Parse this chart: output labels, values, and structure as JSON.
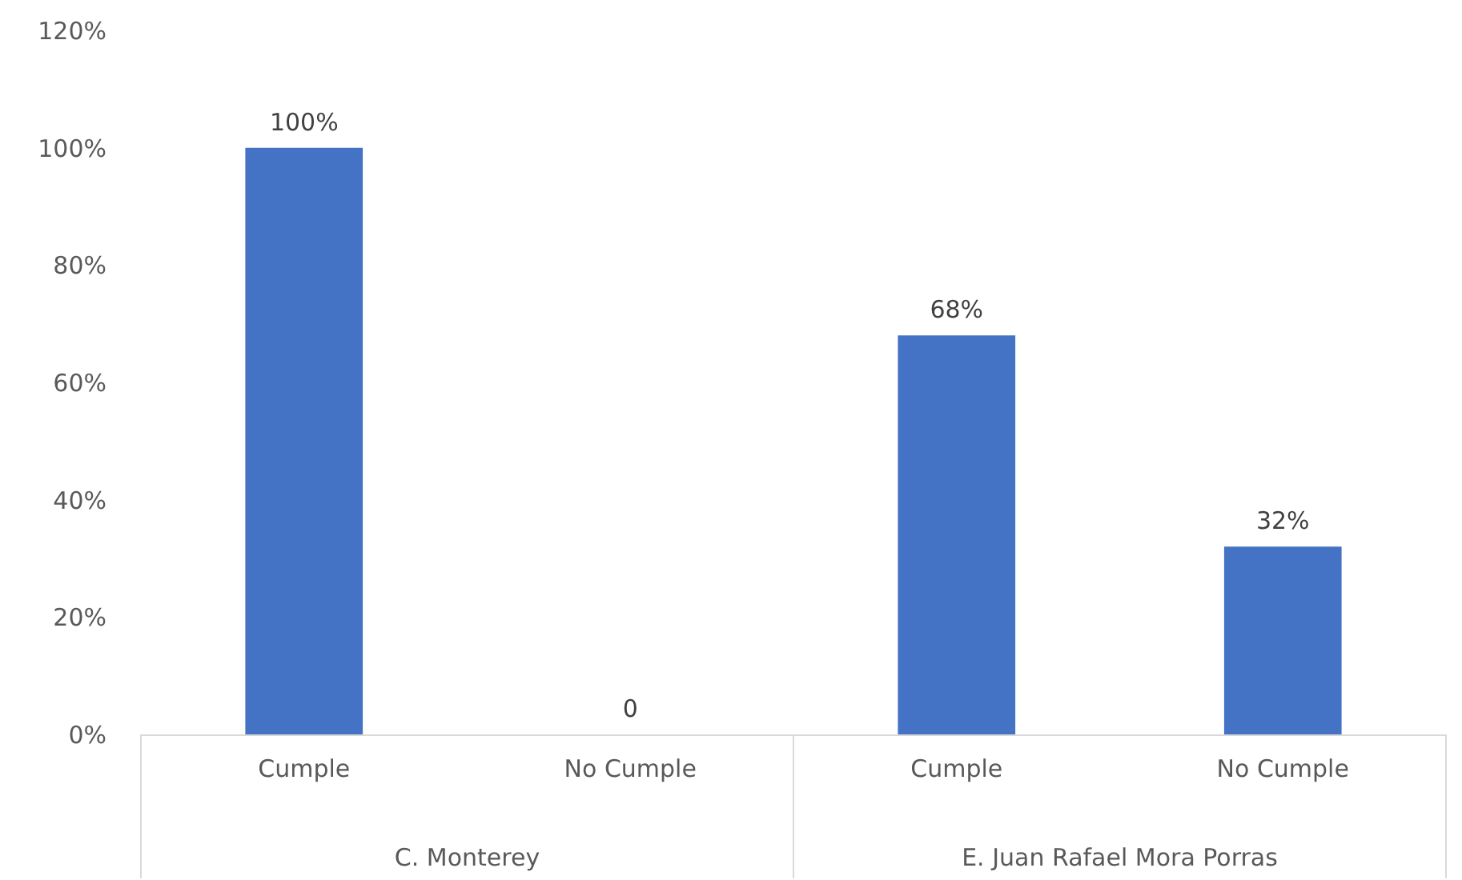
{
  "chart_data": {
    "type": "bar",
    "categories": [
      "Cumple",
      "No Cumple",
      "Cumple",
      "No Cumple"
    ],
    "values": [
      100,
      0,
      68,
      32
    ],
    "colors": [
      "#4472c4",
      "#4472c4",
      "#4472c4",
      "#4472c4"
    ],
    "value_labels": [
      "100%",
      "0",
      "68%",
      "32%"
    ],
    "ylim": [
      0,
      120
    ],
    "yticks": [
      {
        "value": 0,
        "label": "0%"
      },
      {
        "value": 20,
        "label": "20%"
      },
      {
        "value": 40,
        "label": "40%"
      },
      {
        "value": 60,
        "label": "60%"
      },
      {
        "value": 80,
        "label": "80%"
      },
      {
        "value": 100,
        "label": "100%"
      },
      {
        "value": 120,
        "label": "120%"
      }
    ],
    "annotations": [
      "C. Monterey",
      "E. Juan Rafael Mora Porras"
    ],
    "grid": false
  }
}
